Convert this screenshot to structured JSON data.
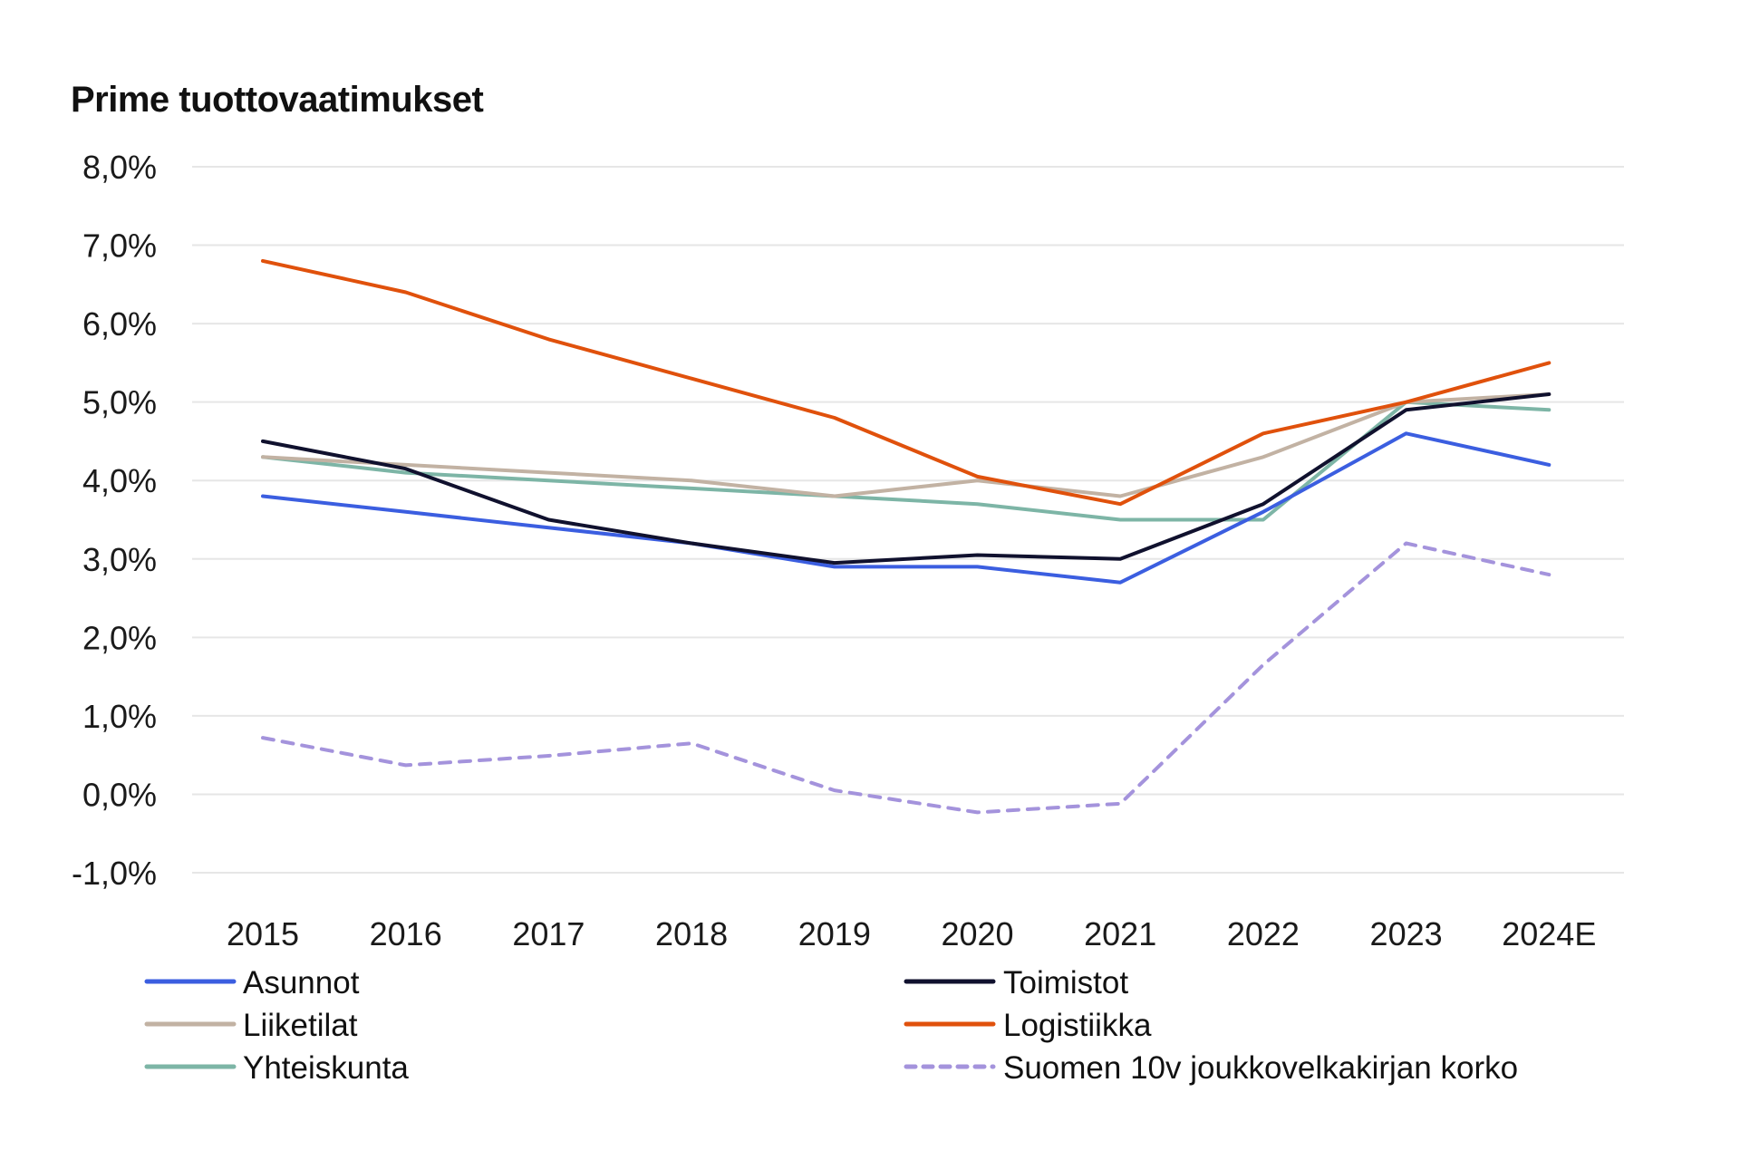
{
  "chart_data": {
    "type": "line",
    "title": "Prime tuottovaatimukset",
    "xlabel": "",
    "ylabel": "",
    "categories": [
      "2015",
      "2016",
      "2017",
      "2018",
      "2019",
      "2020",
      "2021",
      "2022",
      "2023",
      "2024E"
    ],
    "ylim": [
      -1.0,
      8.0
    ],
    "yticks": [
      -1.0,
      0.0,
      1.0,
      2.0,
      3.0,
      4.0,
      5.0,
      6.0,
      7.0,
      8.0
    ],
    "ytick_labels": [
      "-1,0%",
      "0,0%",
      "1,0%",
      "2,0%",
      "3,0%",
      "4,0%",
      "5,0%",
      "6,0%",
      "7,0%",
      "8,0%"
    ],
    "grid": true,
    "legend_position": "bottom",
    "series": [
      {
        "name": "Asunnot",
        "color": "#3b5ee0",
        "dashed": false,
        "values": [
          3.8,
          3.6,
          3.4,
          3.2,
          2.9,
          2.9,
          2.7,
          3.6,
          4.6,
          4.2
        ]
      },
      {
        "name": "Toimistot",
        "color": "#10112e",
        "dashed": false,
        "values": [
          4.5,
          4.15,
          3.5,
          3.2,
          2.95,
          3.05,
          3.0,
          3.7,
          4.9,
          5.1
        ]
      },
      {
        "name": "Liiketilat",
        "color": "#c2b2a3",
        "dashed": false,
        "values": [
          4.3,
          4.2,
          4.1,
          4.0,
          3.8,
          4.0,
          3.8,
          4.3,
          5.0,
          5.1
        ]
      },
      {
        "name": "Logistiikka",
        "color": "#e0510c",
        "dashed": false,
        "values": [
          6.8,
          6.4,
          5.8,
          5.3,
          4.8,
          4.05,
          3.7,
          4.6,
          5.0,
          5.5
        ]
      },
      {
        "name": "Yhteiskunta",
        "color": "#7db5a6",
        "dashed": false,
        "values": [
          4.3,
          4.1,
          4.0,
          3.9,
          3.8,
          3.7,
          3.5,
          3.5,
          5.0,
          4.9
        ]
      },
      {
        "name": "Suomen 10v joukkovelkakirjan korko",
        "color": "#a493dc",
        "dashed": true,
        "values": [
          0.72,
          0.37,
          0.49,
          0.65,
          0.05,
          -0.23,
          -0.12,
          1.65,
          3.2,
          2.8
        ]
      }
    ],
    "legend": [
      {
        "name": "Asunnot",
        "series_index": 0
      },
      {
        "name": "Toimistot",
        "series_index": 1
      },
      {
        "name": "Liiketilat",
        "series_index": 2
      },
      {
        "name": "Logistiikka",
        "series_index": 3
      },
      {
        "name": "Yhteiskunta",
        "series_index": 4
      },
      {
        "name": "Suomen 10v joukkovelkakirjan korko",
        "series_index": 5
      }
    ]
  }
}
